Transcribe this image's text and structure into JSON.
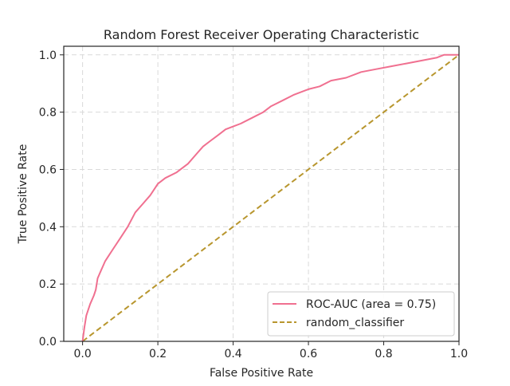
{
  "chart_data": {
    "type": "line",
    "title": "Random Forest Receiver Operating Characteristic",
    "xlabel": "False Positive Rate",
    "ylabel": "True Positive Rate",
    "xlim": [
      -0.05,
      1.0
    ],
    "ylim": [
      0.0,
      1.03
    ],
    "x_ticks": [
      0.0,
      0.2,
      0.4,
      0.6,
      0.8,
      1.0
    ],
    "y_ticks": [
      0.0,
      0.2,
      0.4,
      0.6,
      0.8,
      1.0
    ],
    "x_tick_labels": [
      "0.0",
      "0.2",
      "0.4",
      "0.6",
      "0.8",
      "1.0"
    ],
    "y_tick_labels": [
      "0.0",
      "0.2",
      "0.4",
      "0.6",
      "0.8",
      "1.0"
    ],
    "grid": true,
    "legend_position": "lower-right",
    "series": [
      {
        "name": "ROC-AUC (area = 0.75)",
        "color": "#f07090",
        "style": "solid",
        "x": [
          0.0,
          0.005,
          0.01,
          0.02,
          0.03,
          0.035,
          0.04,
          0.05,
          0.06,
          0.07,
          0.08,
          0.1,
          0.12,
          0.14,
          0.16,
          0.18,
          0.19,
          0.2,
          0.22,
          0.25,
          0.28,
          0.3,
          0.32,
          0.34,
          0.36,
          0.38,
          0.4,
          0.42,
          0.45,
          0.48,
          0.5,
          0.53,
          0.56,
          0.6,
          0.63,
          0.66,
          0.7,
          0.74,
          0.78,
          0.82,
          0.86,
          0.9,
          0.94,
          0.96,
          1.0
        ],
        "y": [
          0.0,
          0.05,
          0.09,
          0.13,
          0.16,
          0.18,
          0.22,
          0.25,
          0.28,
          0.3,
          0.32,
          0.36,
          0.4,
          0.45,
          0.48,
          0.51,
          0.53,
          0.55,
          0.57,
          0.59,
          0.62,
          0.65,
          0.68,
          0.7,
          0.72,
          0.74,
          0.75,
          0.76,
          0.78,
          0.8,
          0.82,
          0.84,
          0.86,
          0.88,
          0.89,
          0.91,
          0.92,
          0.94,
          0.95,
          0.96,
          0.97,
          0.98,
          0.99,
          1.0,
          1.0
        ]
      },
      {
        "name": "random_classifier",
        "color": "#b8962e",
        "style": "dashed",
        "x": [
          0.0,
          1.0
        ],
        "y": [
          0.0,
          1.0
        ]
      }
    ]
  }
}
